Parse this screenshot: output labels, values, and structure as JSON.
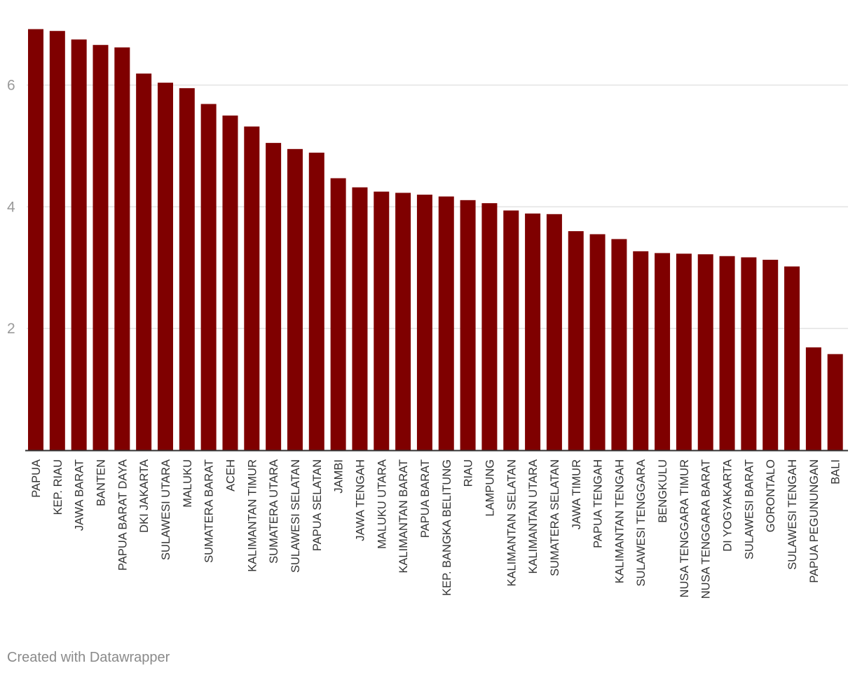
{
  "credit": "Created with Datawrapper",
  "colors": {
    "bar": "#7f0000",
    "grid": "#e3e3e3",
    "axis": "#333333",
    "ytick": "#9a9a9a",
    "xtick": "#333333"
  },
  "chart_data": {
    "type": "bar",
    "title": "",
    "xlabel": "",
    "ylabel": "",
    "ylim": [
      0,
      6.95
    ],
    "yticks": [
      2,
      4,
      6
    ],
    "grid": true,
    "categories": [
      "PAPUA",
      "KEP. RIAU",
      "JAWA BARAT",
      "BANTEN",
      "PAPUA BARAT DAYA",
      "DKI JAKARTA",
      "SULAWESI UTARA",
      "MALUKU",
      "SUMATERA BARAT",
      "ACEH",
      "KALIMANTAN TIMUR",
      "SUMATERA UTARA",
      "SULAWESI SELATAN",
      "PAPUA SELATAN",
      "JAMBI",
      "JAWA TENGAH",
      "MALUKU UTARA",
      "KALIMANTAN BARAT",
      "PAPUA BARAT",
      "KEP. BANGKA BELITUNG",
      "RIAU",
      "LAMPUNG",
      "KALIMANTAN SELATAN",
      "KALIMANTAN UTARA",
      "SUMATERA SELATAN",
      "JAWA TIMUR",
      "PAPUA TENGAH",
      "KALIMANTAN TENGAH",
      "SULAWESI TENGGARA",
      "BENGKULU",
      "NUSA TENGGARA TIMUR",
      "NUSA TENGGARA BARAT",
      "DI YOGYAKARTA",
      "SULAWESI BARAT",
      "GORONTALO",
      "SULAWESI TENGAH",
      "PAPUA PEGUNUNGAN",
      "BALI"
    ],
    "values": [
      6.92,
      6.89,
      6.75,
      6.66,
      6.62,
      6.19,
      6.04,
      5.95,
      5.69,
      5.5,
      5.32,
      5.05,
      4.95,
      4.89,
      4.47,
      4.32,
      4.25,
      4.23,
      4.2,
      4.17,
      4.11,
      4.06,
      3.94,
      3.89,
      3.88,
      3.6,
      3.55,
      3.47,
      3.27,
      3.24,
      3.23,
      3.22,
      3.19,
      3.17,
      3.13,
      3.02,
      1.69,
      1.58
    ]
  }
}
